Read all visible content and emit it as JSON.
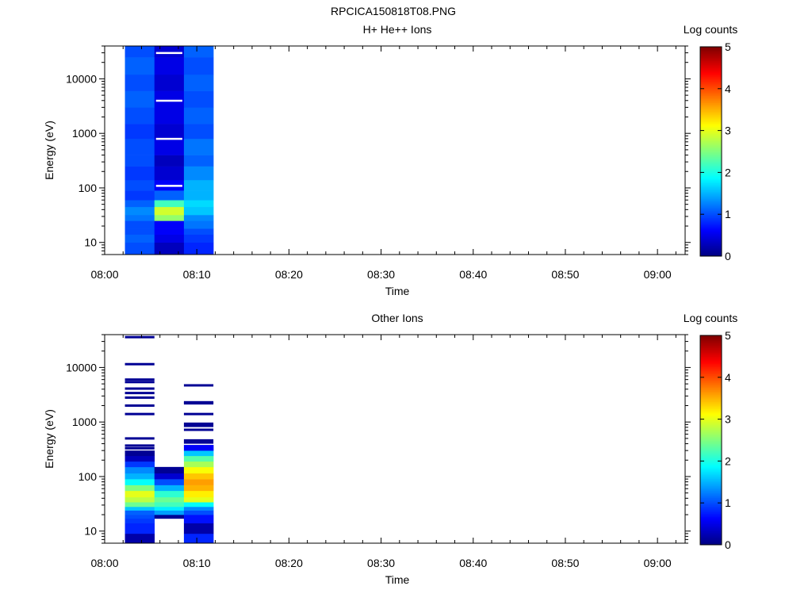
{
  "page_title": "RPCICA150818T08.PNG",
  "chart_data": [
    {
      "type": "heatmap",
      "title": "H+ He++ Ions",
      "xlabel": "Time",
      "ylabel": "Energy (eV)",
      "x_scale": "time",
      "y_scale": "log",
      "xlim": [
        "08:00",
        "09:03"
      ],
      "ylim": [
        6,
        40000
      ],
      "xticks": [
        "08:00",
        "08:10",
        "08:20",
        "08:30",
        "08:40",
        "08:50",
        "09:00"
      ],
      "yticks": [
        "10",
        "100",
        "1000",
        "10000"
      ],
      "colorbar": {
        "label": "Log counts",
        "min": 0,
        "max": 5,
        "ticks": [
          "0",
          "1",
          "2",
          "3",
          "4",
          "5"
        ],
        "colormap": "jet"
      },
      "time_bins": [
        {
          "start": "08:02.2",
          "end": "08:05.4"
        },
        {
          "start": "08:05.4",
          "end": "08:08.6"
        },
        {
          "start": "08:08.6",
          "end": "08:11.8"
        }
      ],
      "energy_bands_eV": [
        [
          6,
          10,
          [
            1.0,
            0.3,
            0.8
          ]
        ],
        [
          10,
          14,
          [
            1.1,
            0.5,
            0.9
          ]
        ],
        [
          14,
          18,
          [
            1.0,
            0.6,
            1.0
          ]
        ],
        [
          18,
          25,
          [
            1.0,
            0.6,
            1.2
          ]
        ],
        [
          25,
          32,
          [
            1.2,
            2.6,
            1.3
          ]
        ],
        [
          32,
          45,
          [
            1.3,
            2.9,
            1.6
          ]
        ],
        [
          45,
          60,
          [
            1.1,
            2.2,
            1.7
          ]
        ],
        [
          60,
          90,
          [
            0.9,
            1.1,
            1.5
          ]
        ],
        [
          90,
          140,
          [
            1.0,
            0.6,
            1.5
          ]
        ],
        [
          140,
          250,
          [
            0.9,
            0.4,
            1.3
          ]
        ],
        [
          250,
          400,
          [
            1.0,
            0.3,
            1.1
          ]
        ],
        [
          400,
          800,
          [
            1.0,
            0.5,
            1.2
          ]
        ],
        [
          800,
          1500,
          [
            0.9,
            0.4,
            1.0
          ]
        ],
        [
          1500,
          3000,
          [
            1.0,
            0.5,
            1.1
          ]
        ],
        [
          3000,
          6000,
          [
            1.1,
            0.5,
            1.0
          ]
        ],
        [
          6000,
          12000,
          [
            1.0,
            0.4,
            1.1
          ]
        ],
        [
          12000,
          25000,
          [
            1.1,
            0.5,
            1.0
          ]
        ],
        [
          25000,
          40000,
          [
            1.0,
            0.4,
            1.1
          ]
        ]
      ],
      "gap_energies_eV": [
        110,
        800,
        4000,
        30000
      ]
    },
    {
      "type": "heatmap",
      "title": "Other Ions",
      "xlabel": "Time",
      "ylabel": "Energy (eV)",
      "x_scale": "time",
      "y_scale": "log",
      "xlim": [
        "08:00",
        "09:03"
      ],
      "ylim": [
        6,
        40000
      ],
      "xticks": [
        "08:00",
        "08:10",
        "08:20",
        "08:30",
        "08:40",
        "08:50",
        "09:00"
      ],
      "yticks": [
        "10",
        "100",
        "1000",
        "10000"
      ],
      "colorbar": {
        "label": "Log counts",
        "min": 0,
        "max": 5,
        "ticks": [
          "0",
          "1",
          "2",
          "3",
          "4",
          "5"
        ],
        "colormap": "jet"
      },
      "time_bins": [
        {
          "start": "08:02.2",
          "end": "08:05.4"
        },
        {
          "start": "08:05.4",
          "end": "08:08.6"
        },
        {
          "start": "08:08.6",
          "end": "08:11.8"
        }
      ],
      "energy_bands_eV": [
        [
          6,
          9,
          [
            0.2,
            null,
            0.8
          ]
        ],
        [
          9,
          14,
          [
            0.8,
            null,
            0.2
          ]
        ],
        [
          14,
          17,
          [
            0.9,
            null,
            0.7
          ]
        ],
        [
          17,
          20,
          [
            1.0,
            0.1,
            0.7
          ]
        ],
        [
          20,
          24,
          [
            1.1,
            1.4,
            1.0
          ]
        ],
        [
          24,
          28,
          [
            1.6,
            1.8,
            1.3
          ]
        ],
        [
          28,
          34,
          [
            2.4,
            2.2,
            1.9
          ]
        ],
        [
          34,
          42,
          [
            2.8,
            2.4,
            3.0
          ]
        ],
        [
          42,
          55,
          [
            3.0,
            2.1,
            3.2
          ]
        ],
        [
          55,
          70,
          [
            2.5,
            1.5,
            3.5
          ]
        ],
        [
          70,
          90,
          [
            1.9,
            1.0,
            3.6
          ]
        ],
        [
          90,
          115,
          [
            1.5,
            0.4,
            3.4
          ]
        ],
        [
          115,
          150,
          [
            1.3,
            0.1,
            3.1
          ]
        ],
        [
          150,
          190,
          [
            0.9,
            null,
            2.7
          ]
        ],
        [
          190,
          240,
          [
            0.3,
            null,
            2.3
          ]
        ],
        [
          240,
          300,
          [
            0.1,
            null,
            1.6
          ]
        ],
        [
          300,
          380,
          [
            null,
            null,
            0.6
          ]
        ]
      ],
      "line_energies_eV": [
        [
          [
            36000,
            11500,
            6000,
            5400,
            4100,
            3400,
            2800,
            2000,
            1400,
            500,
            370,
            330
          ],
          null,
          [
            4700,
            2300,
            2200,
            1400,
            930,
            850,
            720,
            460,
            420
          ]
        ]
      ]
    }
  ]
}
